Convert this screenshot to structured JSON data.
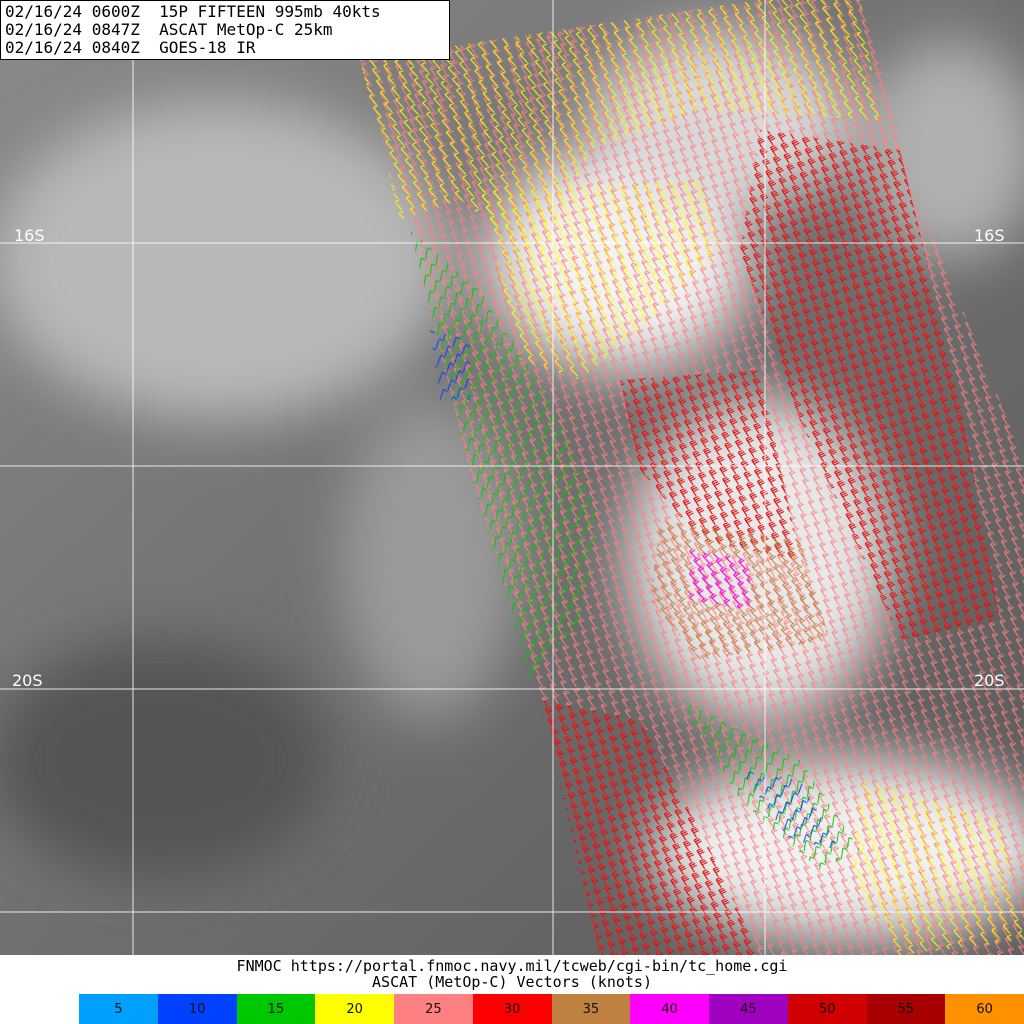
{
  "header": {
    "lines": [
      "02/16/24 0600Z  15P FIFTEEN 995mb 40kts",
      "02/16/24 0847Z  ASCAT MetOp-C 25km",
      "02/16/24 0840Z  GOES-18 IR"
    ]
  },
  "map": {
    "latitude_labels": [
      "16S",
      "16S",
      "20S",
      "20S"
    ]
  },
  "footer": {
    "source": "FNMOC https://portal.fnmoc.navy.mil/tcweb/cgi-bin/tc_home.cgi",
    "caption": "ASCAT (MetOp-C) Vectors (knots)"
  },
  "legend": {
    "items": [
      {
        "label": "5",
        "color": "#00a0ff"
      },
      {
        "label": "10",
        "color": "#0040ff"
      },
      {
        "label": "15",
        "color": "#00c800"
      },
      {
        "label": "20",
        "color": "#ffff00"
      },
      {
        "label": "25",
        "color": "#ff8080"
      },
      {
        "label": "30",
        "color": "#ff0000"
      },
      {
        "label": "35",
        "color": "#c08040"
      },
      {
        "label": "40",
        "color": "#ff00ff"
      },
      {
        "label": "45",
        "color": "#a000c0"
      },
      {
        "label": "50",
        "color": "#d00000"
      },
      {
        "label": "55",
        "color": "#a80000"
      },
      {
        "label": "60",
        "color": "#ff9000"
      }
    ]
  }
}
